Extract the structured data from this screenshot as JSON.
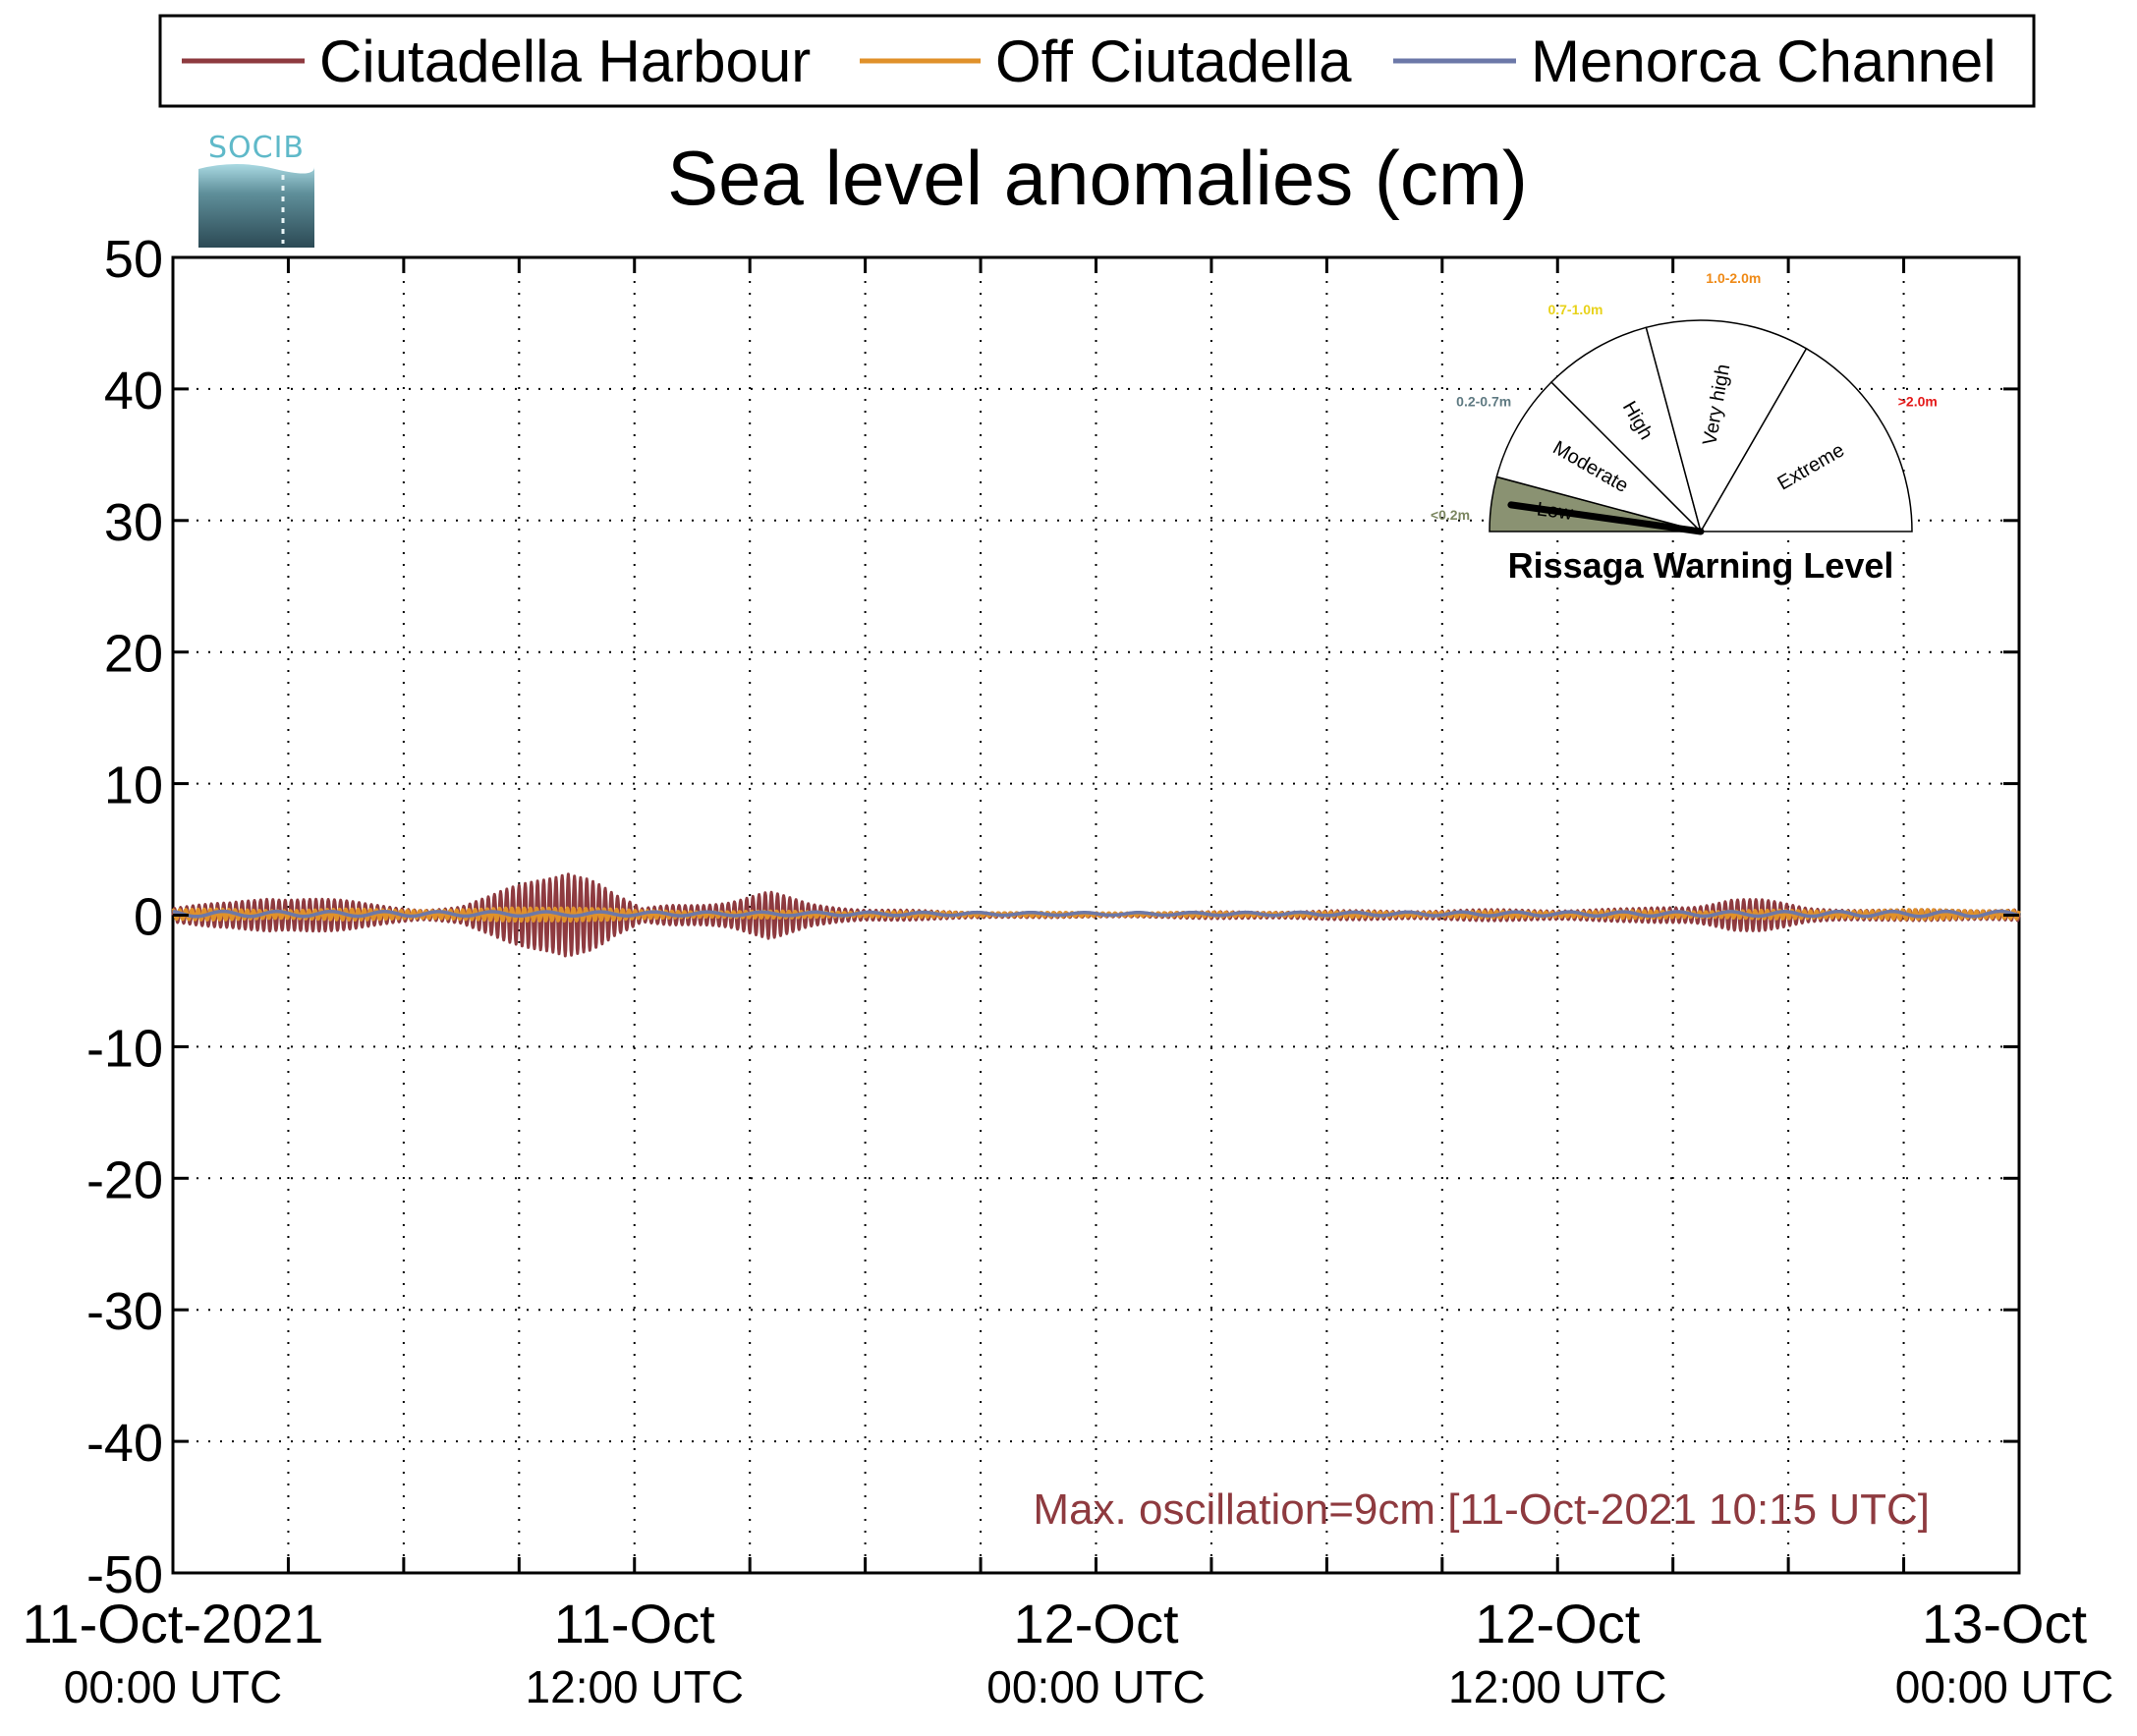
{
  "chart_data": {
    "type": "line",
    "title": "Sea level anomalies (cm)",
    "logo": "SOCIB",
    "xlabel": "",
    "ylabel": "",
    "ylim": [
      -50,
      50
    ],
    "yticks": [
      50,
      40,
      30,
      20,
      10,
      0,
      -10,
      -20,
      -30,
      -40,
      -50
    ],
    "ytick_labels": [
      "50",
      "40",
      "30",
      "20",
      "10",
      "0",
      "-10",
      "-20",
      "-30",
      "-40",
      "-50"
    ],
    "x_range_hours": [
      0,
      48
    ],
    "x_start": "11-Oct-2021 00:00 UTC",
    "x_end": "13-Oct-2021 00:00 UTC",
    "x_major_ticks": [
      {
        "hour": 0,
        "label1": "11-Oct-2021",
        "label2": "00:00 UTC"
      },
      {
        "hour": 12,
        "label1": "11-Oct",
        "label2": "12:00 UTC"
      },
      {
        "hour": 24,
        "label1": "12-Oct",
        "label2": "00:00 UTC"
      },
      {
        "hour": 36,
        "label1": "12-Oct",
        "label2": "12:00 UTC"
      },
      {
        "hour": 48,
        "label1": "13-Oct",
        "label2": "00:00 UTC"
      }
    ],
    "x_grid_step_hours": 3,
    "grid": true,
    "legend_position": "top",
    "series": [
      {
        "name": "Ciutadella Harbour",
        "color": "#8e3a3f",
        "style": "high-frequency oscillation envelope",
        "envelope": [
          {
            "hour": 0.0,
            "amp": 0.6
          },
          {
            "hour": 1.5,
            "amp": 1.0
          },
          {
            "hour": 2.5,
            "amp": 1.7
          },
          {
            "hour": 3.5,
            "amp": 1.5
          },
          {
            "hour": 5.0,
            "amp": 0.9
          },
          {
            "hour": 6.5,
            "amp": 0.5
          },
          {
            "hour": 7.5,
            "amp": 0.7
          },
          {
            "hour": 8.3,
            "amp": 1.5
          },
          {
            "hour": 9.0,
            "amp": 2.5
          },
          {
            "hour": 9.8,
            "amp": 3.8
          },
          {
            "hour": 10.25,
            "amp": 4.5
          },
          {
            "hour": 10.8,
            "amp": 3.5
          },
          {
            "hour": 11.5,
            "amp": 1.6
          },
          {
            "hour": 12.2,
            "amp": 0.5
          },
          {
            "hour": 13.0,
            "amp": 0.9
          },
          {
            "hour": 14.5,
            "amp": 1.2
          },
          {
            "hour": 15.5,
            "amp": 1.8
          },
          {
            "hour": 16.5,
            "amp": 1.0
          },
          {
            "hour": 18.0,
            "amp": 0.5
          },
          {
            "hour": 20.0,
            "amp": 0.3
          },
          {
            "hour": 24.0,
            "amp": 0.15
          },
          {
            "hour": 28.0,
            "amp": 0.3
          },
          {
            "hour": 33.0,
            "amp": 0.4
          },
          {
            "hour": 38.0,
            "amp": 0.5
          },
          {
            "hour": 39.5,
            "amp": 0.8
          },
          {
            "hour": 40.5,
            "amp": 1.4
          },
          {
            "hour": 41.3,
            "amp": 1.2
          },
          {
            "hour": 42.5,
            "amp": 0.6
          },
          {
            "hour": 45.0,
            "amp": 0.4
          },
          {
            "hour": 48.0,
            "amp": 0.5
          }
        ]
      },
      {
        "name": "Off Ciutadella",
        "color": "#e0912a",
        "style": "small oscillation",
        "envelope": [
          {
            "hour": 0.0,
            "amp": 0.4
          },
          {
            "hour": 8.0,
            "amp": 0.4
          },
          {
            "hour": 10.25,
            "amp": 0.7
          },
          {
            "hour": 12.0,
            "amp": 0.3
          },
          {
            "hour": 24.0,
            "amp": 0.15
          },
          {
            "hour": 40.5,
            "amp": 0.3
          },
          {
            "hour": 48.0,
            "amp": 0.4
          }
        ]
      },
      {
        "name": "Menorca Channel",
        "color": "#6c78a8",
        "style": "smooth",
        "envelope": [
          {
            "hour": 0.0,
            "amp": 0.2
          },
          {
            "hour": 24.0,
            "amp": 0.1
          },
          {
            "hour": 48.0,
            "amp": 0.2
          }
        ]
      }
    ],
    "annotation": {
      "text": "Max. oscillation=9cm [11-Oct-2021 10:15 UTC]",
      "color": "#8e3a3f"
    },
    "gauge": {
      "title": "Rissaga Warning Level",
      "needle_value": "Low",
      "levels": [
        {
          "name": "Low",
          "range": "<0.2m",
          "range_color": "#7b8660",
          "fill": "#8a9272"
        },
        {
          "name": "Moderate",
          "range": "0.2-0.7m",
          "range_color": "#5f7a82",
          "fill": "#ffffff"
        },
        {
          "name": "High",
          "range": "0.7-1.0m",
          "range_color": "#e8d21a",
          "fill": "#ffffff"
        },
        {
          "name": "Very high",
          "range": "1.0-2.0m",
          "range_color": "#ef8a17",
          "fill": "#ffffff"
        },
        {
          "name": "Extreme",
          "range": ">2.0m",
          "range_color": "#e41a1a",
          "fill": "#ffffff"
        }
      ]
    }
  }
}
